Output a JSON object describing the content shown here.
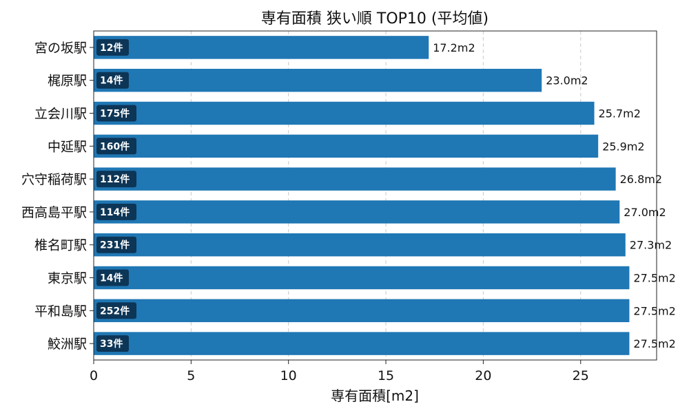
{
  "chart_data": {
    "type": "bar",
    "orientation": "horizontal",
    "title": "専有面積 狭い順 TOP10 (平均値)",
    "xlabel": "専有面積[m2]",
    "ylabel": "",
    "xlim": [
      0,
      28.9
    ],
    "xticks": [
      "0",
      "5",
      "10",
      "15",
      "20",
      "25"
    ],
    "grid": "x-dashed",
    "bar_color": "#1f77b4",
    "badge_color": "#0d3556",
    "categories": [
      "宮の坂駅",
      "梶原駅",
      "立会川駅",
      "中延駅",
      "穴守稲荷駅",
      "西高島平駅",
      "椎名町駅",
      "東京駅",
      "平和島駅",
      "鮫洲駅"
    ],
    "values": [
      17.2,
      23.0,
      25.7,
      25.9,
      26.8,
      27.0,
      27.3,
      27.5,
      27.5,
      27.5
    ],
    "value_labels": [
      "17.2m2",
      "23.0m2",
      "25.7m2",
      "25.9m2",
      "26.8m2",
      "27.0m2",
      "27.3m2",
      "27.5m2",
      "27.5m2",
      "27.5m2"
    ],
    "count_labels": [
      "12件",
      "14件",
      "175件",
      "160件",
      "112件",
      "114件",
      "231件",
      "14件",
      "252件",
      "33件"
    ]
  }
}
